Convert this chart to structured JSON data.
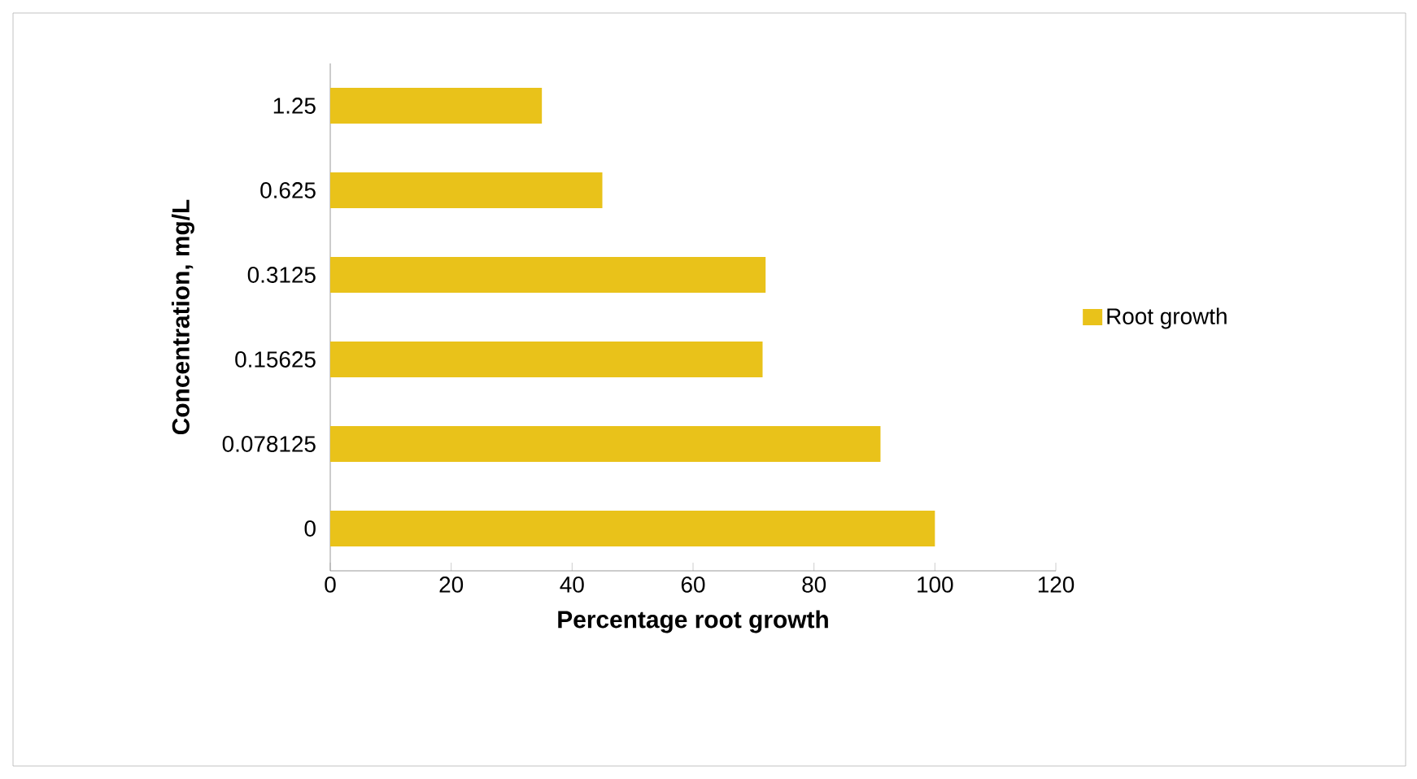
{
  "chart_data": {
    "type": "bar",
    "orientation": "horizontal",
    "xlabel": "Percentage root growth",
    "ylabel": "Concentration, mg/L",
    "categories": [
      "1.25",
      "0.625",
      "0.3125",
      "0.15625",
      "0.078125",
      "0"
    ],
    "series": [
      {
        "name": "Root growth",
        "color": "#e9c21a",
        "values": [
          35,
          45,
          72,
          71.5,
          91,
          100
        ]
      }
    ],
    "xlim": [
      0,
      120
    ],
    "xticks": [
      0,
      20,
      40,
      60,
      80,
      100,
      120
    ],
    "grid": false,
    "legend": "right"
  }
}
